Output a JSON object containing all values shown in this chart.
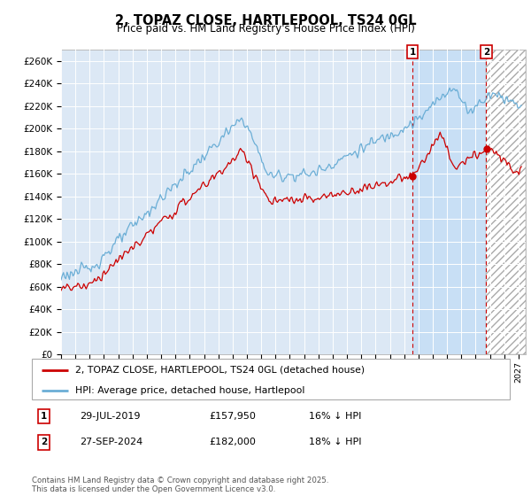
{
  "title": "2, TOPAZ CLOSE, HARTLEPOOL, TS24 0GL",
  "subtitle": "Price paid vs. HM Land Registry's House Price Index (HPI)",
  "ylim": [
    0,
    270000
  ],
  "yticks": [
    0,
    20000,
    40000,
    60000,
    80000,
    100000,
    120000,
    140000,
    160000,
    180000,
    200000,
    220000,
    240000,
    260000
  ],
  "ytick_labels": [
    "£0",
    "£20K",
    "£40K",
    "£60K",
    "£80K",
    "£100K",
    "£120K",
    "£140K",
    "£160K",
    "£180K",
    "£200K",
    "£220K",
    "£240K",
    "£260K"
  ],
  "hpi_color": "#6baed6",
  "price_color": "#cc0000",
  "t1": 2019.575,
  "t2": 2024.745,
  "v1": 157950,
  "v2": 182000,
  "legend_price": "2, TOPAZ CLOSE, HARTLEPOOL, TS24 0GL (detached house)",
  "legend_hpi": "HPI: Average price, detached house, Hartlepool",
  "footer": "Contains HM Land Registry data © Crown copyright and database right 2025.\nThis data is licensed under the Open Government Licence v3.0.",
  "background_color": "#ffffff",
  "plot_bg_color": "#dce8f5",
  "grid_color": "#ffffff",
  "shade_between_color": "#c8dff5",
  "xmin": 1995.0,
  "xmax": 2027.5
}
